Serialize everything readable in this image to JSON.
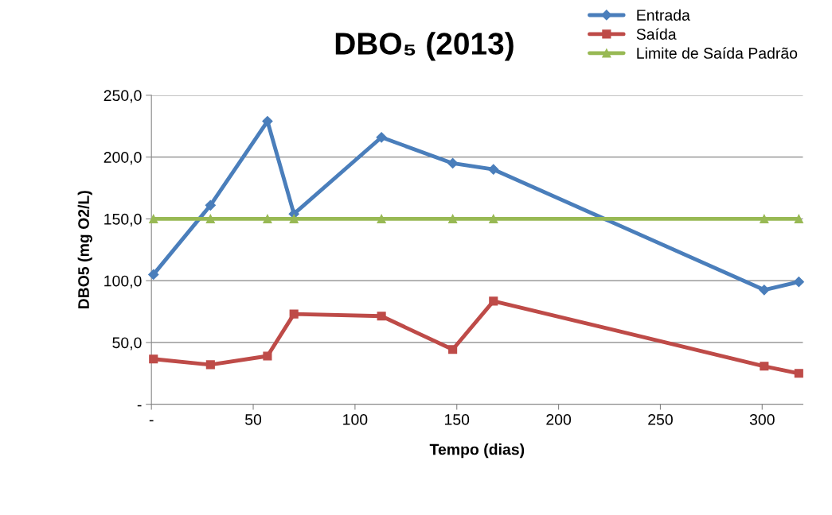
{
  "chart_data": {
    "type": "line",
    "title": "DBO₅ (2013)",
    "xlabel": "Tempo (dias)",
    "ylabel": "DBO5 (mg O2/L)",
    "x": [
      1,
      29,
      57,
      70,
      113,
      148,
      168,
      301,
      318
    ],
    "series": [
      {
        "name": "Entrada",
        "color": "#4a7ebb",
        "marker": "diamond",
        "values": [
          105,
          161,
          229,
          154,
          216,
          195,
          190,
          92.5,
          99
        ]
      },
      {
        "name": "Saída",
        "color": "#be4b48",
        "marker": "square",
        "values": [
          36.6,
          32,
          39,
          73,
          71.3,
          44.3,
          83.5,
          30.8,
          25
        ]
      },
      {
        "name": "Limite de Saída Padrão",
        "color": "#98b954",
        "marker": "triangle",
        "values": [
          150,
          150,
          150,
          150,
          150,
          150,
          150,
          150,
          150
        ]
      }
    ],
    "xlim": [
      0,
      320
    ],
    "xticks": [
      {
        "value": 0,
        "label": "-"
      },
      50,
      100,
      150,
      200,
      250,
      300
    ],
    "ylim": [
      0,
      250
    ],
    "yticks": [
      {
        "value": 0,
        "label": "-"
      },
      {
        "value": 50,
        "label": "50,0"
      },
      {
        "value": 100,
        "label": "100,0"
      },
      {
        "value": 150,
        "label": "150,0"
      },
      {
        "value": 200,
        "label": "200,0"
      },
      {
        "value": 250,
        "label": "250,0"
      }
    ],
    "grid": "y",
    "legend": "top right",
    "line_style": "solid"
  }
}
